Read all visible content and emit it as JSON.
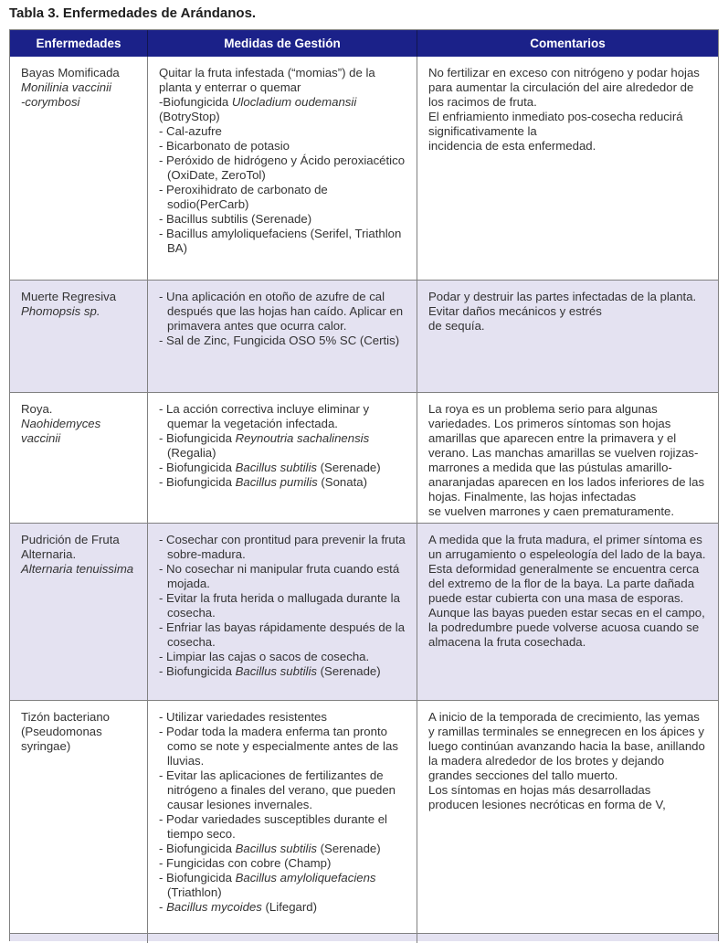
{
  "title": "Tabla 3. Enfermedades de Arándanos.",
  "colors": {
    "header_bg": "#1b2189",
    "row_alt_bg": "#e4e2f1",
    "border": "#818181",
    "text": "#333333"
  },
  "table": {
    "headers": [
      "Enfermedades",
      "Medidas de Gestión",
      "Comentarios"
    ],
    "rows": [
      {
        "disease": [
          {
            "seg": [
              {
                "t": "Bayas Momificada"
              }
            ]
          },
          {
            "seg": [
              {
                "t": "Monilinia vaccinii\n-corymbosi",
                "i": true
              }
            ]
          }
        ],
        "management": [
          {
            "seg": [
              {
                "t": "Quitar la fruta infestada (“momias”) de la planta y enterrar o quemar"
              }
            ]
          },
          {
            "seg": [
              {
                "t": "-Biofungicida "
              },
              {
                "t": "Ulocladium oudemansii",
                "i": true
              },
              {
                "t": " (BotryStop)"
              }
            ]
          },
          {
            "hang": true,
            "seg": [
              {
                "t": "- Cal-azufre"
              }
            ]
          },
          {
            "hang": true,
            "seg": [
              {
                "t": "- Bicarbonato de potasio"
              }
            ]
          },
          {
            "hang": true,
            "seg": [
              {
                "t": "- Peróxido de hidrógeno y Ácido peroxiacético (OxiDate, ZeroTol)"
              }
            ]
          },
          {
            "hang": true,
            "seg": [
              {
                "t": "- Peroxihidrato de carbonato de sodio(PerCarb)"
              }
            ]
          },
          {
            "hang": true,
            "seg": [
              {
                "t": "- Bacillus subtilis (Serenade)"
              }
            ]
          },
          {
            "hang": true,
            "seg": [
              {
                "t": "- Bacillus amyloliquefaciens (Serifel, Triathlon BA)"
              }
            ]
          }
        ],
        "comments": [
          {
            "seg": [
              {
                "t": "No fertilizar en exceso con nitrógeno y podar hojas para aumentar la circulación del aire alrededor de los racimos de fruta.\nEl enfriamiento inmediato pos-cosecha reducirá significativamente la\nincidencia de esta enfermedad."
              }
            ]
          }
        ]
      },
      {
        "disease": [
          {
            "seg": [
              {
                "t": "Muerte Regresiva"
              }
            ]
          },
          {
            "seg": [
              {
                "t": "Phomopsis sp.",
                "i": true
              }
            ]
          }
        ],
        "management": [
          {
            "hang": true,
            "seg": [
              {
                "t": "- Una aplicación en otoño de azufre de cal después que las hojas han caído. Aplicar en primavera antes que ocurra calor."
              }
            ]
          },
          {
            "hang": true,
            "seg": [
              {
                "t": "- Sal de Zinc, Fungicida OSO 5% SC (Certis)"
              }
            ]
          }
        ],
        "comments": [
          {
            "seg": [
              {
                "t": "Podar y destruir las partes infectadas de la planta.\nEvitar daños mecánicos y estrés\nde sequía."
              }
            ]
          }
        ]
      },
      {
        "disease": [
          {
            "seg": [
              {
                "t": "Roya."
              }
            ]
          },
          {
            "seg": [
              {
                "t": "Naohidemyces vaccinii",
                "i": true
              }
            ]
          }
        ],
        "management": [
          {
            "hang": true,
            "seg": [
              {
                "t": "- La acción correctiva incluye eliminar y quemar la vegetación infectada."
              }
            ]
          },
          {
            "hang": true,
            "seg": [
              {
                "t": "- Biofungicida "
              },
              {
                "t": "Reynoutria sachalinensis",
                "i": true
              },
              {
                "t": " (Regalia)"
              }
            ]
          },
          {
            "hang": true,
            "seg": [
              {
                "t": "- Biofungicida "
              },
              {
                "t": "Bacillus subtilis",
                "i": true
              },
              {
                "t": " (Serenade)"
              }
            ]
          },
          {
            "hang": true,
            "seg": [
              {
                "t": "- Biofungicida "
              },
              {
                "t": "Bacillus pumilis",
                "i": true
              },
              {
                "t": " (Sonata)"
              }
            ]
          }
        ],
        "comments": [
          {
            "seg": [
              {
                "t": "La roya es un problema serio para algunas variedades. Los primeros síntomas son hojas amarillas que aparecen entre la primavera y el verano. Las manchas amarillas se vuelven rojizas-marrones a medida que las pústulas amarillo-anaranjadas aparecen en los lados inferiores de las hojas. Finalmente, las hojas infectadas\nse vuelven marrones y caen prematuramente."
              }
            ]
          }
        ]
      },
      {
        "disease": [
          {
            "seg": [
              {
                "t": "Pudrición de Fruta Alternaria."
              }
            ]
          },
          {
            "seg": [
              {
                "t": "Alternaria tenuissima",
                "i": true
              }
            ]
          }
        ],
        "management": [
          {
            "hang": true,
            "seg": [
              {
                "t": "- Cosechar con prontitud para prevenir la fruta sobre-madura."
              }
            ]
          },
          {
            "hang": true,
            "seg": [
              {
                "t": "- No cosechar ni manipular fruta cuando está mojada."
              }
            ]
          },
          {
            "hang": true,
            "seg": [
              {
                "t": "- Evitar la fruta herida o mallugada durante la cosecha."
              }
            ]
          },
          {
            "hang": true,
            "seg": [
              {
                "t": "- Enfriar las bayas rápidamente después de la cosecha."
              }
            ]
          },
          {
            "hang": true,
            "seg": [
              {
                "t": "- Limpiar las cajas o sacos de cosecha."
              }
            ]
          },
          {
            "hang": true,
            "seg": [
              {
                "t": "- Biofungicida "
              },
              {
                "t": "Bacillus subtilis",
                "i": true
              },
              {
                "t": " (Serenade)"
              }
            ]
          }
        ],
        "comments": [
          {
            "seg": [
              {
                "t": "A medida que la fruta madura, el primer síntoma es un arrugamiento o espeleología del lado de la baya. Esta deformidad generalmente se encuentra cerca del extremo de la flor de la baya. La parte dañada puede estar cubierta con una masa de esporas. Aunque las bayas pueden estar secas en el campo, la podredumbre puede volverse acuosa cuando se almacena la fruta cosechada."
              }
            ]
          }
        ]
      },
      {
        "disease": [
          {
            "seg": [
              {
                "t": "Tizón bacteriano (Pseudomonas syringae)"
              }
            ]
          }
        ],
        "management": [
          {
            "hang": true,
            "seg": [
              {
                "t": "- Utilizar variedades resistentes"
              }
            ]
          },
          {
            "hang": true,
            "seg": [
              {
                "t": "- Podar toda la madera enferma tan pronto como se note y especialmente antes de las lluvias."
              }
            ]
          },
          {
            "hang": true,
            "seg": [
              {
                "t": "- Evitar las aplicaciones de fertilizantes de nitrógeno a finales del verano, que pueden causar lesiones invernales."
              }
            ]
          },
          {
            "hang": true,
            "seg": [
              {
                "t": "- Podar variedades susceptibles durante el tiempo seco."
              }
            ]
          },
          {
            "hang": true,
            "seg": [
              {
                "t": "- Biofungicida "
              },
              {
                "t": "Bacillus subtilis",
                "i": true
              },
              {
                "t": " (Serenade)"
              }
            ]
          },
          {
            "hang": true,
            "seg": [
              {
                "t": "- Fungicidas con cobre (Champ)"
              }
            ]
          },
          {
            "hang": true,
            "seg": [
              {
                "t": "- Biofungicida "
              },
              {
                "t": "Bacillus amyloliquefaciens",
                "i": true
              },
              {
                "t": " (Triathlon)"
              }
            ]
          },
          {
            "hang": true,
            "seg": [
              {
                "t": "- "
              },
              {
                "t": "Bacillus mycoides",
                "i": true
              },
              {
                "t": " (Lifegard)"
              }
            ]
          }
        ],
        "comments": [
          {
            "seg": [
              {
                "t": "A inicio de la temporada de crecimiento, las yemas y ramillas terminales se ennegrecen en los ápices y luego continúan avanzando hacia la base, anillando la madera alrededor de los brotes y dejando grandes secciones del tallo muerto.\nLos síntomas en hojas más desarrolladas\nproducen lesiones necróticas en forma de V,"
              }
            ]
          }
        ]
      }
    ]
  }
}
